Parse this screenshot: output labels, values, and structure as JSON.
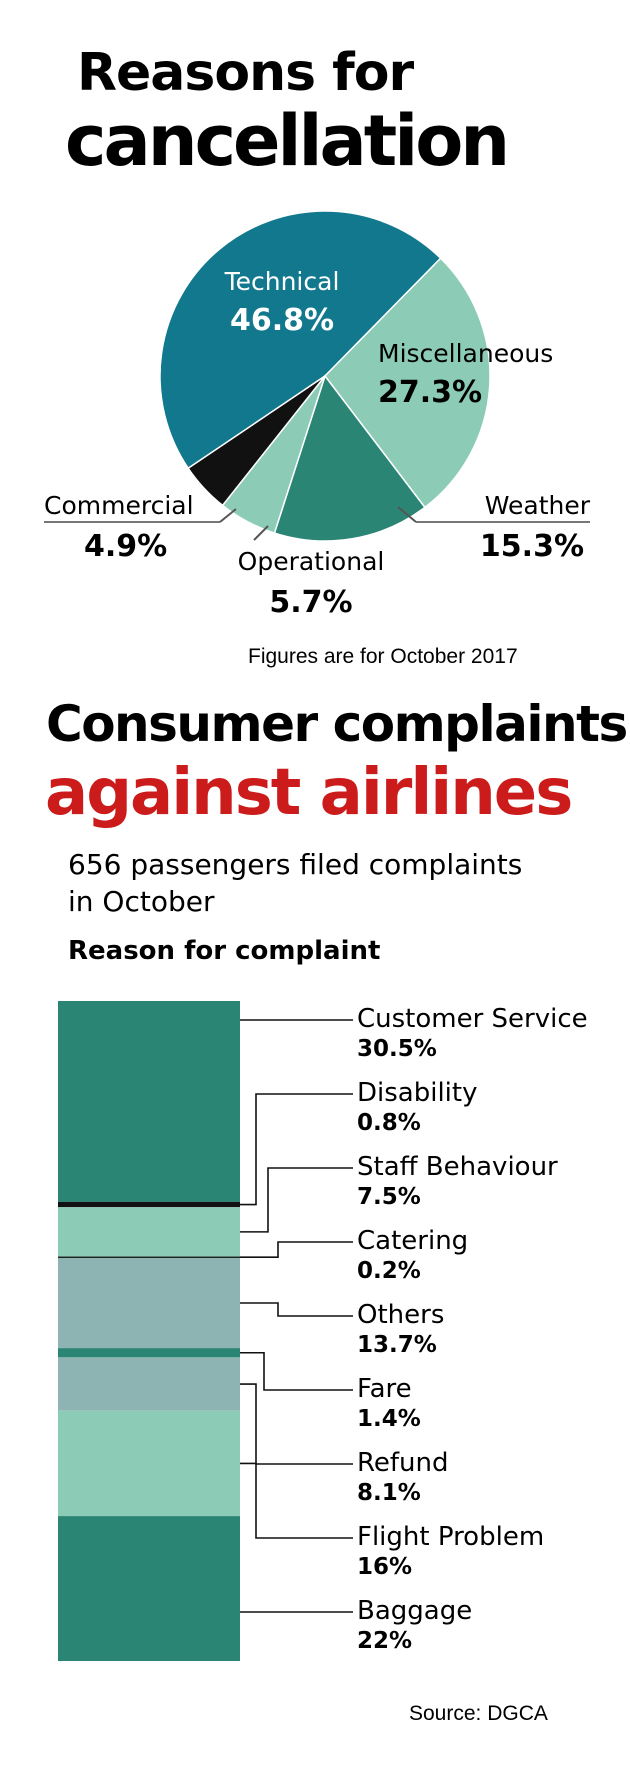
{
  "pie_section": {
    "title_line1": "Reasons for",
    "title_line2": "cancellation",
    "footnote": "Figures are for October 2017"
  },
  "complaints_section": {
    "title_line1": "Consumer complaints",
    "title_line2": "against airlines",
    "subtitle_line1": "656 passengers filed complaints",
    "subtitle_line2": "in October",
    "subheading": "Reason for complaint"
  },
  "source": "Source: DGCA",
  "colors": {
    "teal_dark": "#12788e",
    "mint": "#8ccbb5",
    "green": "#2b8574",
    "black": "#111111",
    "grey_teal": "#8db3b2",
    "red": "#cc1b1b"
  },
  "chart_data": [
    {
      "type": "pie",
      "title": "Reasons for cancellation",
      "slices": [
        {
          "label": "Technical",
          "value": 46.8,
          "value_label": "46.8%",
          "color": "#12788e"
        },
        {
          "label": "Miscellaneous",
          "value": 27.3,
          "value_label": "27.3%",
          "color": "#8ccbb5"
        },
        {
          "label": "Weather",
          "value": 15.3,
          "value_label": "15.3%",
          "color": "#2b8574"
        },
        {
          "label": "Operational",
          "value": 5.7,
          "value_label": "5.7%",
          "color": "#8ccbb5"
        },
        {
          "label": "Commercial",
          "value": 4.9,
          "value_label": "4.9%",
          "color": "#111111"
        }
      ]
    },
    {
      "type": "bar",
      "title": "Consumer complaints against airlines",
      "subtitle": "Reason for complaint",
      "stacked": true,
      "segments": [
        {
          "label": "Customer Service",
          "value": 30.5,
          "value_label": "30.5%",
          "color": "#2b8574"
        },
        {
          "label": "Disability",
          "value": 0.8,
          "value_label": "0.8%",
          "color": "#111111"
        },
        {
          "label": "Staff Behaviour",
          "value": 7.5,
          "value_label": "7.5%",
          "color": "#8ccbb5"
        },
        {
          "label": "Catering",
          "value": 0.2,
          "value_label": "0.2%",
          "color": "#111111"
        },
        {
          "label": "Others",
          "value": 13.7,
          "value_label": "13.7%",
          "color": "#8db3b2"
        },
        {
          "label": "Fare",
          "value": 1.4,
          "value_label": "1.4%",
          "color": "#2b8574"
        },
        {
          "label": "Refund",
          "value": 8.1,
          "value_label": "8.1%",
          "color": "#8db3b2"
        },
        {
          "label": "Flight Problem",
          "value": 16,
          "value_label": "16%",
          "color": "#8ccbb5"
        },
        {
          "label": "Baggage",
          "value": 22,
          "value_label": "22%",
          "color": "#2b8574"
        }
      ]
    }
  ]
}
